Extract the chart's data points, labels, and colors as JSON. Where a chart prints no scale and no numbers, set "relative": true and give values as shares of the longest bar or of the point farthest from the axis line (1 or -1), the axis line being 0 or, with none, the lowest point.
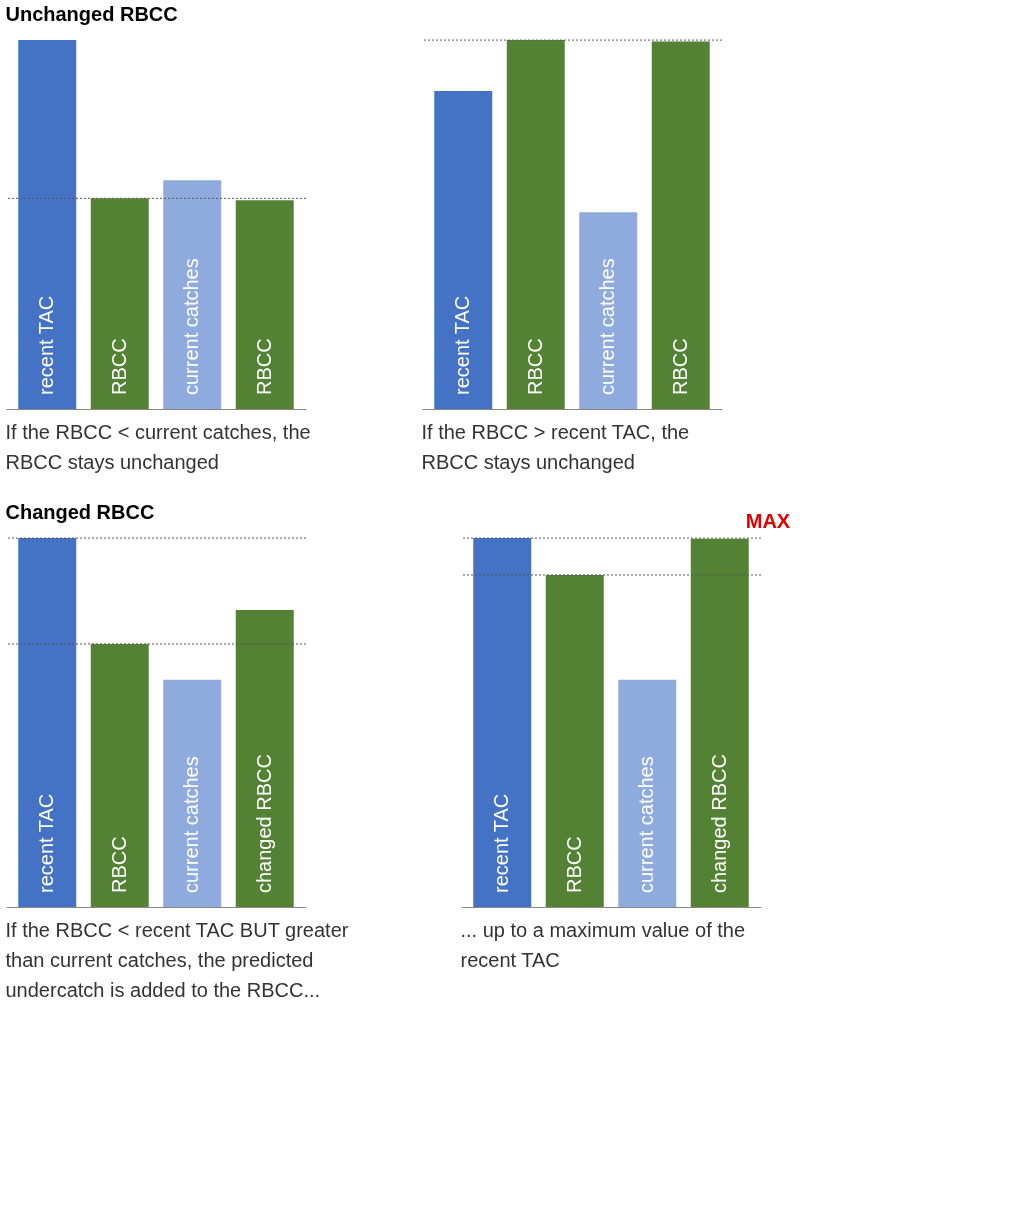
{
  "chart_data": [
    {
      "type": "bar",
      "relative": true,
      "title": "Unchanged RBCC",
      "categories": [
        "recent TAC",
        "RBCC",
        "current catches",
        "RBCC"
      ],
      "values": [
        1,
        0.571,
        0.62,
        0.566
      ],
      "colors": [
        "#4472c4",
        "#548235",
        "#8faadc",
        "#548235"
      ],
      "ref_lines": [
        {
          "axis": "y",
          "value": 0.571,
          "color": "#555555",
          "line_style": "dotted"
        }
      ],
      "annotations": [
        "If the RBCC < current catches, the\nRBCC stays unchanged"
      ]
    },
    {
      "type": "bar",
      "relative": true,
      "categories": [
        "recent TAC",
        "RBCC",
        "current catches",
        "RBCC"
      ],
      "values": [
        0.862,
        1,
        0.533,
        0.996
      ],
      "colors": [
        "#4472c4",
        "#548235",
        "#8faadc",
        "#548235"
      ],
      "ref_lines": [
        {
          "axis": "y",
          "value": 1,
          "color": "#555555",
          "line_style": "dotted"
        }
      ],
      "annotations": [
        "If the RBCC > recent TAC, the\nRBCC stays unchanged"
      ]
    },
    {
      "type": "bar",
      "relative": true,
      "title": "Changed RBCC",
      "categories": [
        "recent TAC",
        "RBCC",
        "current catches",
        "changed RBCC"
      ],
      "values": [
        1,
        0.713,
        0.616,
        0.805
      ],
      "colors": [
        "#4472c4",
        "#548235",
        "#8faadc",
        "#548235"
      ],
      "ref_lines": [
        {
          "axis": "y",
          "value": 1,
          "color": "#555555",
          "line_style": "dotted"
        },
        {
          "axis": "y",
          "value": 0.713,
          "color": "#555555",
          "line_style": "dotted"
        }
      ],
      "annotations": [
        "If the RBCC < recent TAC BUT greater\nthan current catches, the predicted\nundercatch is added to the RBCC..."
      ]
    },
    {
      "type": "bar",
      "relative": true,
      "categories": [
        "recent TAC",
        "RBCC",
        "current catches",
        "changed RBCC"
      ],
      "values": [
        1,
        0.9,
        0.616,
        0.998
      ],
      "colors": [
        "#4472c4",
        "#548235",
        "#8faadc",
        "#548235"
      ],
      "ref_lines": [
        {
          "axis": "y",
          "value": 1,
          "color": "#555555",
          "line_style": "dotted"
        },
        {
          "axis": "y",
          "value": 0.9,
          "color": "#555555",
          "line_style": "dotted"
        }
      ],
      "annotations": [
        {
          "text": "MAX",
          "x": "changed RBCC",
          "y": 1
        },
        "... up to a maximum value of the\nrecent TAC"
      ]
    }
  ]
}
